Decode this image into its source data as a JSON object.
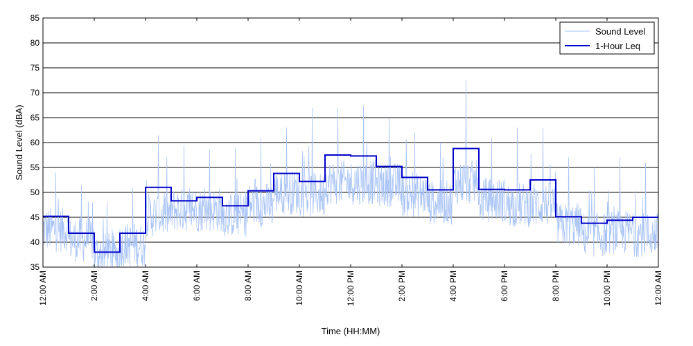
{
  "chart_data": {
    "type": "line",
    "xlabel": "Time (HH:MM)",
    "ylabel": "Sound Level (dBA)",
    "ylim": [
      35,
      85
    ],
    "xlim_hours": [
      0,
      24
    ],
    "grid": "horizontal",
    "legend_position": "top-right",
    "y_ticks": [
      35,
      40,
      45,
      50,
      55,
      60,
      65,
      70,
      75,
      80,
      85
    ],
    "x_ticks": [
      {
        "hour": 0,
        "label": "12:00 AM"
      },
      {
        "hour": 2,
        "label": "2:00 AM"
      },
      {
        "hour": 4,
        "label": "4:00 AM"
      },
      {
        "hour": 6,
        "label": "6:00 AM"
      },
      {
        "hour": 8,
        "label": "8:00 AM"
      },
      {
        "hour": 10,
        "label": "10:00 AM"
      },
      {
        "hour": 12,
        "label": "12:00 PM"
      },
      {
        "hour": 14,
        "label": "2:00 PM"
      },
      {
        "hour": 16,
        "label": "4:00 PM"
      },
      {
        "hour": 18,
        "label": "6:00 PM"
      },
      {
        "hour": 20,
        "label": "8:00 PM"
      },
      {
        "hour": 22,
        "label": "10:00 PM"
      },
      {
        "hour": 24,
        "label": "12:00 AM"
      }
    ],
    "series": [
      {
        "name": "Sound Level",
        "color": "#a9c4f5",
        "style": "thin-line",
        "hourly_mean": [
          42.5,
          40.5,
          37.5,
          39.5,
          45.5,
          46.5,
          46.5,
          45.5,
          47.5,
          50,
          49.5,
          52,
          52,
          51.5,
          49.5,
          48,
          52,
          48.5,
          47.5,
          47.5,
          43.5,
          41.5,
          42,
          41.5
        ],
        "hourly_peak": [
          54,
          51.5,
          48,
          51,
          61.5,
          59.5,
          58.5,
          59,
          61,
          63,
          67,
          67,
          67.5,
          65,
          62,
          60,
          72.5,
          61,
          63,
          63,
          57,
          55,
          57,
          56
        ]
      },
      {
        "name": "1-Hour Leq",
        "color": "#0000cc",
        "style": "step",
        "values": [
          45.2,
          41.8,
          38,
          41.8,
          51,
          48.3,
          49,
          47.3,
          50.3,
          53.8,
          52.2,
          57.5,
          57.3,
          55.2,
          53,
          50.5,
          58.8,
          50.6,
          50.5,
          52.5,
          45.1,
          43.8,
          44.4,
          45
        ]
      }
    ]
  },
  "colors": {
    "sound_level": "#a9c4f5",
    "leq": "#0000cc",
    "grid": "#000000"
  }
}
